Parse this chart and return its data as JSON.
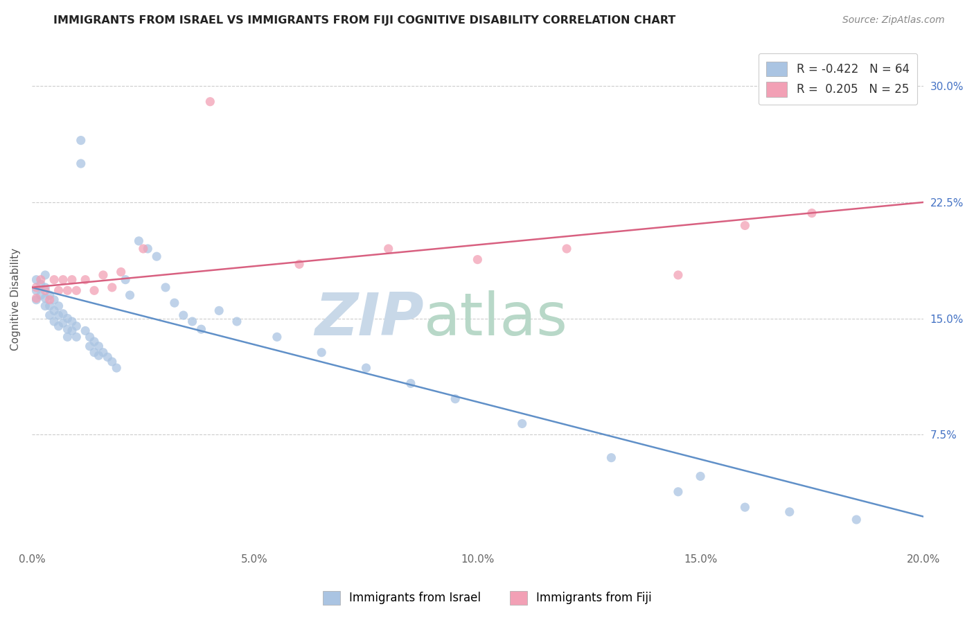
{
  "title": "IMMIGRANTS FROM ISRAEL VS IMMIGRANTS FROM FIJI COGNITIVE DISABILITY CORRELATION CHART",
  "source": "Source: ZipAtlas.com",
  "ylabel": "Cognitive Disability",
  "xlim": [
    0.0,
    0.2
  ],
  "ylim": [
    0.0,
    0.325
  ],
  "yticks": [
    0.0,
    0.075,
    0.15,
    0.225,
    0.3
  ],
  "ytick_labels": [
    "",
    "7.5%",
    "15.0%",
    "22.5%",
    "30.0%"
  ],
  "xticks": [
    0.0,
    0.05,
    0.1,
    0.15,
    0.2
  ],
  "xtick_labels": [
    "0.0%",
    "5.0%",
    "10.0%",
    "15.0%",
    "20.0%"
  ],
  "israel_R": -0.422,
  "israel_N": 64,
  "fiji_R": 0.205,
  "fiji_N": 25,
  "israel_color": "#aac4e2",
  "fiji_color": "#f2a0b5",
  "israel_line_color": "#6090c8",
  "fiji_line_color": "#d86080",
  "background_color": "#ffffff",
  "grid_color": "#cccccc",
  "israel_x": [
    0.001,
    0.001,
    0.001,
    0.002,
    0.002,
    0.003,
    0.003,
    0.003,
    0.003,
    0.004,
    0.004,
    0.004,
    0.005,
    0.005,
    0.005,
    0.006,
    0.006,
    0.006,
    0.007,
    0.007,
    0.008,
    0.008,
    0.008,
    0.009,
    0.009,
    0.01,
    0.01,
    0.011,
    0.011,
    0.012,
    0.013,
    0.013,
    0.014,
    0.014,
    0.015,
    0.015,
    0.016,
    0.017,
    0.018,
    0.019,
    0.021,
    0.022,
    0.024,
    0.026,
    0.028,
    0.03,
    0.032,
    0.034,
    0.036,
    0.038,
    0.042,
    0.046,
    0.055,
    0.065,
    0.075,
    0.085,
    0.095,
    0.11,
    0.13,
    0.145,
    0.15,
    0.16,
    0.17,
    0.185
  ],
  "israel_y": [
    0.175,
    0.168,
    0.162,
    0.172,
    0.165,
    0.178,
    0.17,
    0.163,
    0.158,
    0.165,
    0.158,
    0.152,
    0.162,
    0.155,
    0.148,
    0.158,
    0.152,
    0.145,
    0.153,
    0.147,
    0.15,
    0.143,
    0.138,
    0.148,
    0.142,
    0.145,
    0.138,
    0.265,
    0.25,
    0.142,
    0.138,
    0.132,
    0.135,
    0.128,
    0.132,
    0.126,
    0.128,
    0.125,
    0.122,
    0.118,
    0.175,
    0.165,
    0.2,
    0.195,
    0.19,
    0.17,
    0.16,
    0.152,
    0.148,
    0.143,
    0.155,
    0.148,
    0.138,
    0.128,
    0.118,
    0.108,
    0.098,
    0.082,
    0.06,
    0.038,
    0.048,
    0.028,
    0.025,
    0.02
  ],
  "fiji_x": [
    0.001,
    0.001,
    0.002,
    0.003,
    0.004,
    0.005,
    0.006,
    0.007,
    0.008,
    0.009,
    0.01,
    0.012,
    0.014,
    0.016,
    0.018,
    0.02,
    0.025,
    0.04,
    0.06,
    0.08,
    0.1,
    0.12,
    0.145,
    0.16,
    0.175
  ],
  "fiji_y": [
    0.17,
    0.163,
    0.175,
    0.168,
    0.162,
    0.175,
    0.168,
    0.175,
    0.168,
    0.175,
    0.168,
    0.175,
    0.168,
    0.178,
    0.17,
    0.18,
    0.195,
    0.29,
    0.185,
    0.195,
    0.188,
    0.195,
    0.178,
    0.21,
    0.218
  ],
  "israel_trend_x": [
    0.0,
    0.2
  ],
  "israel_trend_y": [
    0.17,
    0.022
  ],
  "fiji_trend_x": [
    0.0,
    0.2
  ],
  "fiji_trend_y": [
    0.17,
    0.225
  ]
}
